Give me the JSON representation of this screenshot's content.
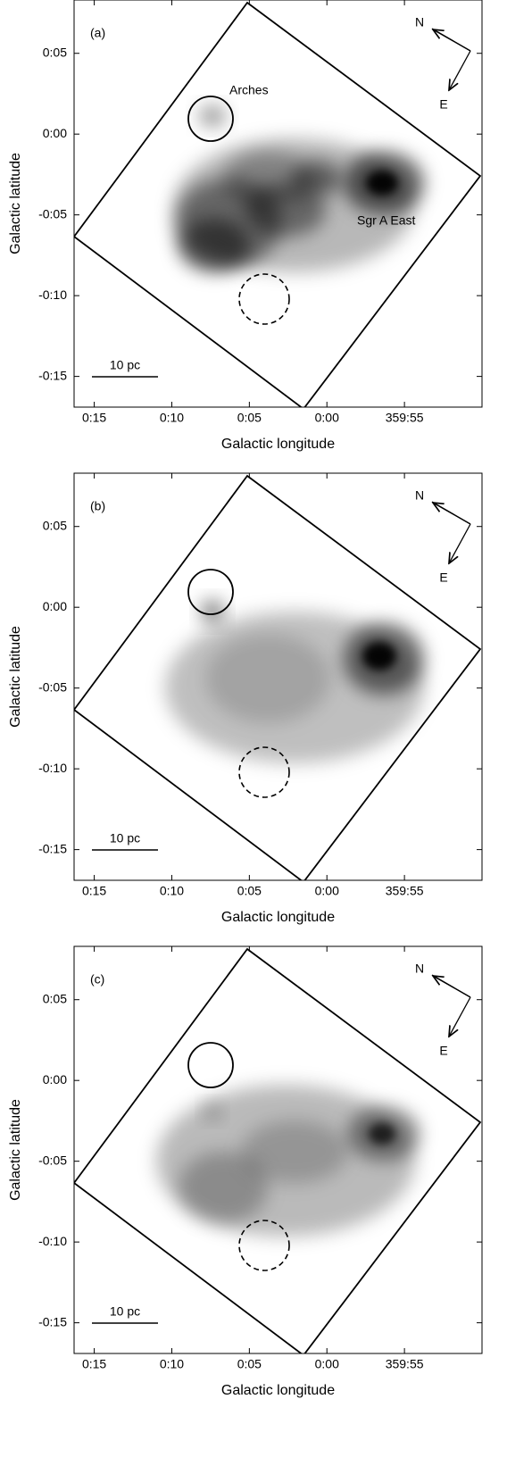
{
  "chart_data": [
    {
      "type": "image",
      "panel_label": "(a)",
      "annotations": [
        "Arches",
        "Sgr A East"
      ],
      "compass": [
        "N",
        "E"
      ],
      "scale_bar": "10 pc",
      "x_label": "Galactic longitude",
      "y_label": "Galactic latitude",
      "xlim": [
        16.3,
        -10
      ],
      "ylim": [
        -16.9,
        8.3
      ],
      "xticks": [
        {
          "value": 15,
          "label": "0:15"
        },
        {
          "value": 10,
          "label": "0:10"
        },
        {
          "value": 5,
          "label": "0:05"
        },
        {
          "value": 0,
          "label": "0:00"
        },
        {
          "value": -5,
          "label": "359:55"
        }
      ],
      "yticks": [
        {
          "value": 5,
          "label": "0:05"
        },
        {
          "value": 0,
          "label": "0:00"
        },
        {
          "value": -5,
          "label": "-0:05"
        },
        {
          "value": -10,
          "label": "-0:10"
        },
        {
          "value": -15,
          "label": "-0:15"
        }
      ]
    },
    {
      "type": "image",
      "panel_label": "(b)",
      "compass": [
        "N",
        "E"
      ],
      "scale_bar": "10 pc",
      "x_label": "Galactic longitude",
      "y_label": "Galactic latitude",
      "xlim": [
        16.3,
        -10
      ],
      "ylim": [
        -16.9,
        8.3
      ],
      "xticks": [
        {
          "value": 15,
          "label": "0:15"
        },
        {
          "value": 10,
          "label": "0:10"
        },
        {
          "value": 5,
          "label": "0:05"
        },
        {
          "value": 0,
          "label": "0:00"
        },
        {
          "value": -5,
          "label": "359:55"
        }
      ],
      "yticks": [
        {
          "value": 5,
          "label": "0:05"
        },
        {
          "value": 0,
          "label": "0:00"
        },
        {
          "value": -5,
          "label": "-0:05"
        },
        {
          "value": -10,
          "label": "-0:10"
        },
        {
          "value": -15,
          "label": "-0:15"
        }
      ]
    },
    {
      "type": "image",
      "panel_label": "(c)",
      "compass": [
        "N",
        "E"
      ],
      "scale_bar": "10 pc",
      "x_label": "Galactic longitude",
      "y_label": "Galactic latitude",
      "xlim": [
        16.3,
        -10
      ],
      "ylim": [
        -16.9,
        8.3
      ],
      "xticks": [
        {
          "value": 15,
          "label": "0:15"
        },
        {
          "value": 10,
          "label": "0:10"
        },
        {
          "value": 5,
          "label": "0:05"
        },
        {
          "value": 0,
          "label": "0:00"
        },
        {
          "value": -5,
          "label": "359:55"
        }
      ],
      "yticks": [
        {
          "value": 5,
          "label": "0:05"
        },
        {
          "value": 0,
          "label": "0:00"
        },
        {
          "value": -5,
          "label": "-0:05"
        },
        {
          "value": -10,
          "label": "-0:10"
        },
        {
          "value": -15,
          "label": "-0:15"
        }
      ]
    }
  ]
}
